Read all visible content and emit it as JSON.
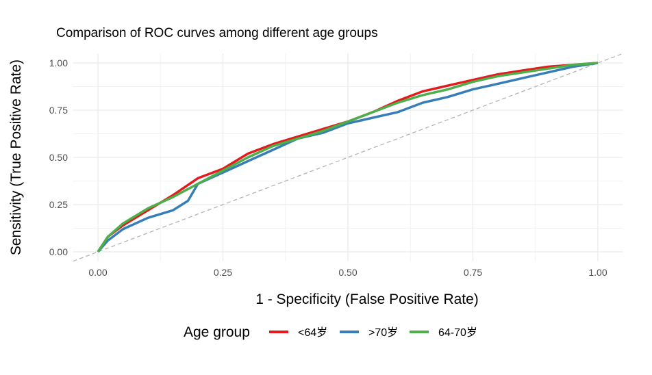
{
  "chart_data": {
    "type": "line",
    "title": "Comparison of ROC curves among different age groups",
    "xlabel": "1 - Specificity (False Positive Rate)",
    "ylabel": "Sensitivity (True Positive Rate)",
    "xlim": [
      -0.05,
      1.05
    ],
    "ylim": [
      -0.05,
      1.05
    ],
    "xticks": [
      0,
      0.25,
      0.5,
      0.75,
      1
    ],
    "yticks": [
      0,
      0.25,
      0.5,
      0.75,
      1
    ],
    "xtick_labels": [
      "0.00",
      "0.25",
      "0.50",
      "0.75",
      "1.00"
    ],
    "ytick_labels": [
      "0.00",
      "0.25",
      "0.50",
      "0.75",
      "1.00"
    ],
    "grid": true,
    "reference_line": {
      "style": "dashed",
      "color": "#b3b3b3",
      "from": [
        -0.05,
        -0.05
      ],
      "to": [
        1.05,
        1.05
      ]
    },
    "legend": {
      "title": "Age group",
      "placement": "bottom"
    },
    "series": [
      {
        "name": "<64岁",
        "color": "#e41a1c",
        "x": [
          0,
          0.02,
          0.05,
          0.1,
          0.15,
          0.2,
          0.25,
          0.3,
          0.35,
          0.4,
          0.45,
          0.5,
          0.55,
          0.6,
          0.65,
          0.7,
          0.75,
          0.8,
          0.85,
          0.9,
          0.95,
          1
        ],
        "y": [
          0,
          0.08,
          0.14,
          0.22,
          0.3,
          0.39,
          0.44,
          0.52,
          0.57,
          0.61,
          0.65,
          0.69,
          0.74,
          0.8,
          0.85,
          0.88,
          0.91,
          0.94,
          0.96,
          0.98,
          0.99,
          1
        ]
      },
      {
        "name": ">70岁",
        "color": "#377eb8",
        "x": [
          0,
          0.02,
          0.05,
          0.1,
          0.15,
          0.18,
          0.2,
          0.25,
          0.3,
          0.35,
          0.4,
          0.45,
          0.5,
          0.55,
          0.6,
          0.65,
          0.7,
          0.75,
          0.8,
          0.85,
          0.9,
          0.95,
          1
        ],
        "y": [
          0,
          0.06,
          0.12,
          0.18,
          0.22,
          0.27,
          0.36,
          0.42,
          0.48,
          0.54,
          0.6,
          0.63,
          0.68,
          0.71,
          0.74,
          0.79,
          0.82,
          0.86,
          0.89,
          0.92,
          0.95,
          0.98,
          1
        ]
      },
      {
        "name": "64-70岁",
        "color": "#4daf4a",
        "x": [
          0,
          0.02,
          0.05,
          0.1,
          0.15,
          0.2,
          0.25,
          0.3,
          0.35,
          0.4,
          0.45,
          0.5,
          0.55,
          0.6,
          0.65,
          0.7,
          0.75,
          0.8,
          0.85,
          0.9,
          0.95,
          1
        ],
        "y": [
          0,
          0.08,
          0.15,
          0.23,
          0.29,
          0.36,
          0.43,
          0.5,
          0.56,
          0.6,
          0.64,
          0.69,
          0.74,
          0.79,
          0.83,
          0.86,
          0.9,
          0.93,
          0.95,
          0.97,
          0.99,
          1
        ]
      }
    ]
  }
}
